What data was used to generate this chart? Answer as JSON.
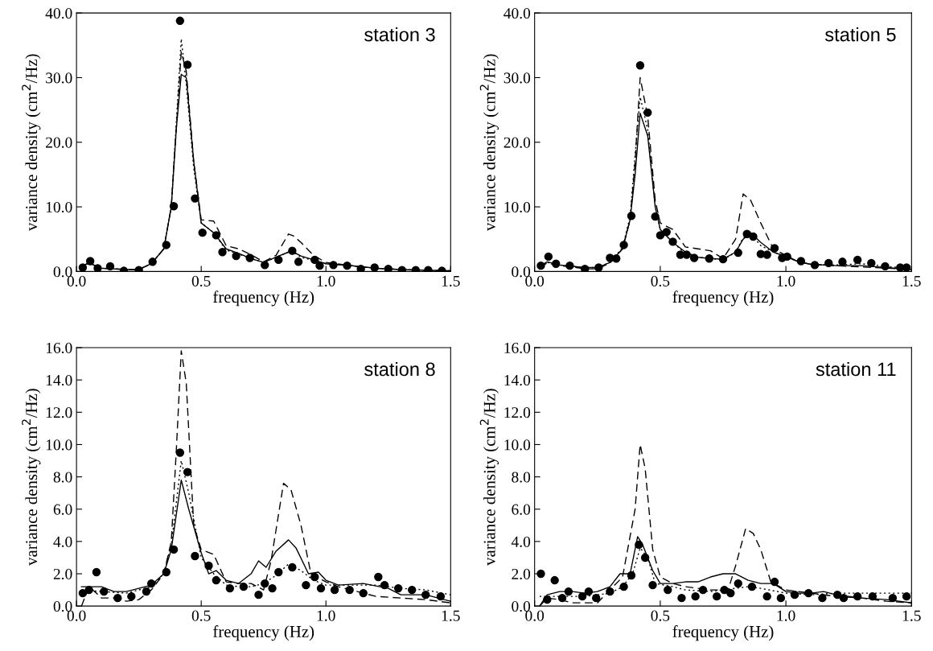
{
  "chart_data": [
    {
      "type": "line",
      "xlabel": "frequency (Hz)",
      "ylabel": "variance density (cm$^{2}$/Hz)",
      "annotations": [
        "station 3"
      ],
      "xlim": [
        0,
        1.5
      ],
      "xticks": [
        {
          "value": 0,
          "label": "0.0"
        },
        {
          "value": 0.5,
          "label": "0.5"
        },
        {
          "value": 1.0,
          "label": "1.0"
        },
        {
          "value": 1.5,
          "label": "1.5"
        }
      ],
      "ylim": [
        0,
        40
      ],
      "yticks": [
        {
          "value": 0,
          "label": "0.0"
        },
        {
          "value": 10,
          "label": "10.0"
        },
        {
          "value": 20,
          "label": "20.0"
        },
        {
          "value": 30,
          "label": "30.0"
        },
        {
          "value": 40,
          "label": "40.0"
        }
      ],
      "grid": false,
      "series": [
        {
          "type": "scatter",
          "marker": "circle",
          "color": "#000000",
          "x": [
            0.025,
            0.055,
            0.085,
            0.135,
            0.19,
            0.25,
            0.305,
            0.36,
            0.39,
            0.415,
            0.445,
            0.475,
            0.505,
            0.56,
            0.585,
            0.64,
            0.695,
            0.755,
            0.81,
            0.865,
            0.89,
            0.955,
            0.975,
            1.03,
            1.085,
            1.14,
            1.195,
            1.25,
            1.305,
            1.36,
            1.41,
            1.465
          ],
          "values": [
            0.6,
            1.6,
            0.5,
            0.8,
            0.1,
            0.2,
            1.5,
            4.1,
            10.1,
            38.8,
            32.0,
            11.3,
            6.0,
            5.6,
            3.0,
            2.4,
            2.1,
            1.0,
            1.8,
            3.2,
            1.5,
            1.8,
            0.9,
            1.0,
            0.9,
            0.4,
            0.6,
            0.4,
            0.2,
            0.2,
            0.2,
            0.1
          ]
        },
        {
          "line_style": "solid",
          "color": "#000000",
          "x": [
            0.02,
            0.05,
            0.1,
            0.2,
            0.25,
            0.3,
            0.35,
            0.38,
            0.4,
            0.42,
            0.44,
            0.47,
            0.5,
            0.55,
            0.6,
            0.65,
            0.7,
            0.75,
            0.8,
            0.85,
            0.87,
            0.9,
            0.95,
            1.0,
            1.1,
            1.2,
            1.3,
            1.4,
            1.5
          ],
          "values": [
            0.8,
            1.3,
            0.5,
            0.3,
            0.3,
            1.2,
            3.5,
            10,
            22,
            30.5,
            30,
            17,
            7.5,
            6,
            3.5,
            2.8,
            2,
            1.4,
            2.2,
            3,
            3,
            2.4,
            1.8,
            1.2,
            0.9,
            0.5,
            0.3,
            0.2,
            0.1
          ]
        },
        {
          "line_style": "dashed",
          "color": "#000000",
          "x": [
            0.02,
            0.05,
            0.1,
            0.2,
            0.25,
            0.3,
            0.35,
            0.38,
            0.4,
            0.42,
            0.44,
            0.47,
            0.5,
            0.55,
            0.6,
            0.65,
            0.7,
            0.75,
            0.8,
            0.85,
            0.87,
            0.9,
            0.95,
            1.0,
            1.1,
            1.2,
            1.3,
            1.4,
            1.5
          ],
          "values": [
            0.8,
            1.3,
            0.5,
            0.3,
            0.3,
            1.2,
            3.5,
            10,
            22,
            34,
            31,
            17,
            8,
            7.8,
            4,
            3.5,
            2.6,
            1.5,
            2.5,
            5.8,
            5.5,
            4.5,
            2.5,
            1.4,
            0.9,
            0.5,
            0.3,
            0.2,
            0.1
          ]
        },
        {
          "line_style": "dotted",
          "color": "#000000",
          "x": [
            0.02,
            0.05,
            0.1,
            0.2,
            0.25,
            0.3,
            0.35,
            0.38,
            0.4,
            0.42,
            0.44,
            0.47,
            0.5,
            0.55,
            0.6,
            0.65,
            0.7,
            0.75,
            0.8,
            0.85,
            0.87,
            0.9,
            0.95,
            1.0,
            1.1,
            1.2,
            1.3,
            1.4,
            1.5
          ],
          "values": [
            0.8,
            1.3,
            0.5,
            0.3,
            0.3,
            1.2,
            3.5,
            10,
            23,
            36,
            29,
            16,
            7.5,
            6,
            3.3,
            2.7,
            2,
            1.4,
            2.2,
            3,
            3,
            2.2,
            1.7,
            1.2,
            0.9,
            0.5,
            0.3,
            0.2,
            0.1
          ]
        }
      ]
    },
    {
      "type": "line",
      "xlabel": "frequency (Hz)",
      "ylabel": "variance density (cm$^{2}$/Hz)",
      "annotations": [
        "station 5"
      ],
      "xlim": [
        0,
        1.5
      ],
      "xticks": [
        {
          "value": 0,
          "label": "0.0"
        },
        {
          "value": 0.5,
          "label": "0.5"
        },
        {
          "value": 1.0,
          "label": "1.0"
        },
        {
          "value": 1.5,
          "label": "1.5"
        }
      ],
      "ylim": [
        0,
        40
      ],
      "yticks": [
        {
          "value": 0,
          "label": "0.0"
        },
        {
          "value": 10,
          "label": "10.0"
        },
        {
          "value": 20,
          "label": "20.0"
        },
        {
          "value": 30,
          "label": "30.0"
        },
        {
          "value": 40,
          "label": "40.0"
        }
      ],
      "grid": false,
      "series": [
        {
          "type": "scatter",
          "marker": "circle",
          "color": "#000000",
          "x": [
            0.025,
            0.055,
            0.085,
            0.14,
            0.2,
            0.255,
            0.3,
            0.325,
            0.355,
            0.385,
            0.42,
            0.45,
            0.48,
            0.5,
            0.525,
            0.55,
            0.58,
            0.605,
            0.635,
            0.695,
            0.75,
            0.81,
            0.845,
            0.87,
            0.9,
            0.925,
            0.955,
            0.985,
            1.005,
            1.06,
            1.115,
            1.17,
            1.225,
            1.285,
            1.34,
            1.395,
            1.455,
            1.48
          ],
          "values": [
            0.9,
            2.3,
            1.2,
            0.9,
            0.4,
            0.6,
            2.1,
            2.0,
            4.1,
            8.6,
            31.9,
            24.6,
            8.5,
            5.6,
            6.1,
            4.6,
            2.6,
            2.6,
            2.1,
            2.0,
            1.9,
            2.9,
            5.8,
            5.4,
            2.7,
            2.6,
            3.6,
            2.1,
            2.3,
            1.6,
            1.0,
            1.3,
            1.5,
            1.8,
            1.3,
            0.8,
            0.6,
            0.6
          ]
        },
        {
          "line_style": "solid",
          "color": "#000000",
          "x": [
            0.02,
            0.05,
            0.1,
            0.15,
            0.2,
            0.25,
            0.3,
            0.35,
            0.38,
            0.4,
            0.42,
            0.45,
            0.48,
            0.5,
            0.55,
            0.6,
            0.65,
            0.7,
            0.75,
            0.8,
            0.83,
            0.86,
            0.9,
            0.95,
            1.0,
            1.05,
            1.1,
            1.2,
            1.3,
            1.4,
            1.5
          ],
          "values": [
            0.8,
            1.5,
            1.0,
            0.8,
            0.6,
            0.6,
            1.4,
            3.5,
            8,
            15,
            24.5,
            21,
            10,
            6.5,
            4.5,
            3,
            2.2,
            2,
            1.9,
            3,
            5,
            6,
            4.5,
            3,
            2.3,
            1.5,
            1.1,
            0.9,
            0.9,
            0.6,
            0.3
          ]
        },
        {
          "line_style": "dashed",
          "color": "#000000",
          "x": [
            0.02,
            0.05,
            0.1,
            0.15,
            0.2,
            0.25,
            0.3,
            0.35,
            0.38,
            0.4,
            0.42,
            0.45,
            0.48,
            0.5,
            0.55,
            0.6,
            0.65,
            0.7,
            0.75,
            0.8,
            0.83,
            0.86,
            0.9,
            0.95,
            1.0,
            1.05,
            1.1,
            1.2,
            1.3,
            1.4,
            1.5
          ],
          "values": [
            0.7,
            1.3,
            0.9,
            0.7,
            0.4,
            0.4,
            1.3,
            3.5,
            8,
            17,
            30,
            24,
            11,
            7.5,
            6.5,
            3.8,
            3.5,
            3.2,
            2.0,
            5,
            12,
            11,
            7.5,
            3.5,
            2.5,
            1.5,
            1.1,
            0.9,
            0.7,
            0.5,
            0.3
          ]
        },
        {
          "line_style": "dotted",
          "color": "#000000",
          "x": [
            0.02,
            0.05,
            0.1,
            0.15,
            0.2,
            0.25,
            0.3,
            0.35,
            0.38,
            0.4,
            0.42,
            0.45,
            0.48,
            0.5,
            0.55,
            0.6,
            0.65,
            0.7,
            0.75,
            0.8,
            0.83,
            0.86,
            0.9,
            0.95,
            1.0,
            1.05,
            1.1,
            1.2,
            1.3,
            1.4,
            1.5
          ],
          "values": [
            0.8,
            1.4,
            1.0,
            0.8,
            0.6,
            0.6,
            1.4,
            3.7,
            8.5,
            18,
            27,
            22,
            10,
            6.5,
            4.5,
            2.8,
            2.2,
            2,
            1.8,
            3,
            5.2,
            5.8,
            4,
            3,
            2.3,
            1.5,
            1.1,
            1,
            1.2,
            0.8,
            0.4
          ]
        }
      ]
    },
    {
      "type": "line",
      "xlabel": "frequency (Hz)",
      "ylabel": "variance density (cm$^{2}$/Hz)",
      "annotations": [
        "station 8"
      ],
      "xlim": [
        0,
        1.5
      ],
      "xticks": [
        {
          "value": 0,
          "label": "0.0"
        },
        {
          "value": 0.5,
          "label": "0.5"
        },
        {
          "value": 1.0,
          "label": "1.0"
        },
        {
          "value": 1.5,
          "label": "1.5"
        }
      ],
      "ylim": [
        0,
        16
      ],
      "yticks": [
        {
          "value": 0,
          "label": "0.0"
        },
        {
          "value": 2,
          "label": "2.0"
        },
        {
          "value": 4,
          "label": "4.0"
        },
        {
          "value": 6,
          "label": "6.0"
        },
        {
          "value": 8,
          "label": "8.0"
        },
        {
          "value": 10,
          "label": "10.0"
        },
        {
          "value": 12,
          "label": "12.0"
        },
        {
          "value": 14,
          "label": "14.0"
        },
        {
          "value": 16,
          "label": "16.0"
        }
      ],
      "grid": false,
      "series": [
        {
          "type": "scatter",
          "marker": "circle",
          "color": "#000000",
          "x": [
            0.025,
            0.05,
            0.08,
            0.11,
            0.165,
            0.22,
            0.28,
            0.3,
            0.36,
            0.39,
            0.415,
            0.445,
            0.475,
            0.53,
            0.56,
            0.615,
            0.67,
            0.73,
            0.755,
            0.785,
            0.81,
            0.865,
            0.92,
            0.955,
            0.98,
            1.035,
            1.095,
            1.15,
            1.21,
            1.235,
            1.29,
            1.345,
            1.4,
            1.46
          ],
          "values": [
            0.8,
            1.0,
            2.1,
            0.9,
            0.5,
            0.6,
            0.9,
            1.4,
            2.1,
            3.5,
            9.5,
            8.3,
            3.1,
            2.5,
            1.6,
            1.1,
            1.2,
            0.7,
            1.4,
            1.1,
            2.1,
            2.4,
            1.3,
            1.8,
            1.1,
            1.0,
            1.0,
            0.8,
            1.8,
            1.3,
            1.1,
            1.0,
            0.7,
            0.6
          ]
        },
        {
          "line_style": "solid",
          "color": "#000000",
          "x": [
            0.02,
            0.1,
            0.15,
            0.2,
            0.25,
            0.3,
            0.35,
            0.38,
            0.42,
            0.45,
            0.5,
            0.53,
            0.56,
            0.6,
            0.65,
            0.7,
            0.73,
            0.76,
            0.8,
            0.85,
            0.88,
            0.93,
            0.97,
            1.0,
            1.05,
            1.15,
            1.25,
            1.3,
            1.4,
            1.5
          ],
          "values": [
            1.2,
            1.2,
            0.9,
            0.9,
            1.1,
            1.3,
            2,
            3.5,
            7.8,
            6,
            3.3,
            2,
            2.2,
            1.6,
            1.4,
            2,
            2.8,
            2.4,
            3.4,
            4.1,
            3.6,
            2,
            2.1,
            1.6,
            1.3,
            1.4,
            1.1,
            0.7,
            0.7,
            0.3
          ]
        },
        {
          "line_style": "dashed",
          "color": "#000000",
          "x": [
            0.02,
            0.05,
            0.08,
            0.1,
            0.15,
            0.2,
            0.25,
            0.3,
            0.35,
            0.38,
            0.4,
            0.42,
            0.44,
            0.47,
            0.5,
            0.55,
            0.6,
            0.65,
            0.7,
            0.75,
            0.78,
            0.83,
            0.86,
            0.9,
            0.94,
            1.0,
            1.05,
            1.1,
            1.2,
            1.3,
            1.4,
            1.5
          ],
          "values": [
            0,
            1.2,
            0.8,
            0.5,
            0.5,
            0.3,
            0.4,
            1,
            2,
            4,
            9.6,
            15.8,
            13.8,
            5,
            3.5,
            3.2,
            1.5,
            1.4,
            1.4,
            1,
            2.8,
            7.6,
            7.2,
            5,
            2,
            1.5,
            1.2,
            1.0,
            0.6,
            0.5,
            0.4,
            0.2
          ]
        },
        {
          "line_style": "dotted",
          "color": "#000000",
          "x": [
            0.02,
            0.1,
            0.2,
            0.3,
            0.35,
            0.38,
            0.42,
            0.45,
            0.5,
            0.55,
            0.6,
            0.65,
            0.7,
            0.75,
            0.8,
            0.85,
            0.9,
            0.95,
            1.0,
            1.1,
            1.2,
            1.3,
            1.4,
            1.5
          ],
          "values": [
            1.0,
            0.9,
            0.8,
            1.2,
            2,
            3.8,
            9,
            7,
            3,
            2,
            1.3,
            1.2,
            1.2,
            1.4,
            1.9,
            2.6,
            2.2,
            1.6,
            1.3,
            1.3,
            1.3,
            1.1,
            1.0,
            0.7
          ]
        }
      ]
    },
    {
      "type": "line",
      "xlabel": "frequency (Hz)",
      "ylabel": "variance density (cm$^{2}$/Hz)",
      "annotations": [
        "station 11"
      ],
      "xlim": [
        0,
        1.5
      ],
      "xticks": [
        {
          "value": 0,
          "label": "0.0"
        },
        {
          "value": 0.5,
          "label": "0.5"
        },
        {
          "value": 1.0,
          "label": "1.0"
        },
        {
          "value": 1.5,
          "label": "1.5"
        }
      ],
      "ylim": [
        0,
        16
      ],
      "yticks": [
        {
          "value": 0,
          "label": "0.0"
        },
        {
          "value": 2,
          "label": "2.0"
        },
        {
          "value": 4,
          "label": "4.0"
        },
        {
          "value": 6,
          "label": "6.0"
        },
        {
          "value": 8,
          "label": "8.0"
        },
        {
          "value": 10,
          "label": "10.0"
        },
        {
          "value": 12,
          "label": "12.0"
        },
        {
          "value": 14,
          "label": "14.0"
        },
        {
          "value": 16,
          "label": "16.0"
        }
      ],
      "grid": false,
      "series": [
        {
          "type": "scatter",
          "marker": "circle",
          "color": "#000000",
          "x": [
            0.025,
            0.05,
            0.08,
            0.11,
            0.135,
            0.19,
            0.215,
            0.245,
            0.3,
            0.355,
            0.385,
            0.415,
            0.44,
            0.47,
            0.53,
            0.585,
            0.64,
            0.67,
            0.725,
            0.755,
            0.78,
            0.81,
            0.865,
            0.925,
            0.955,
            0.98,
            1.035,
            1.09,
            1.145,
            1.205,
            1.23,
            1.285,
            1.345,
            1.425,
            1.48
          ],
          "values": [
            2.0,
            0.4,
            1.6,
            0.5,
            0.9,
            0.6,
            0.9,
            0.5,
            0.9,
            1.2,
            1.9,
            3.8,
            3.0,
            1.3,
            1.0,
            0.5,
            0.6,
            1.0,
            0.6,
            1.0,
            0.8,
            1.4,
            1.2,
            0.6,
            1.5,
            0.5,
            0.7,
            0.8,
            0.5,
            0.7,
            0.5,
            0.6,
            0.6,
            0.5,
            0.6
          ]
        },
        {
          "line_style": "solid",
          "color": "#000000",
          "x": [
            0.02,
            0.05,
            0.1,
            0.15,
            0.2,
            0.25,
            0.3,
            0.34,
            0.38,
            0.41,
            0.43,
            0.47,
            0.5,
            0.55,
            0.6,
            0.65,
            0.7,
            0.75,
            0.8,
            0.85,
            0.9,
            0.95,
            1.0,
            1.05,
            1.1,
            1.15,
            1.2,
            1.25,
            1.3,
            1.4,
            1.5
          ],
          "values": [
            0,
            0.7,
            0.9,
            0.9,
            0.8,
            0.9,
            1.2,
            2,
            2,
            4.3,
            3.8,
            2.2,
            1.4,
            1.4,
            1.5,
            1.5,
            1.8,
            2,
            2,
            1.6,
            1.4,
            1.4,
            0.9,
            0.8,
            0.8,
            0.9,
            0.7,
            0.6,
            0.5,
            0.4,
            0.2
          ]
        },
        {
          "line_style": "dashed",
          "color": "#000000",
          "x": [
            0.02,
            0.05,
            0.1,
            0.15,
            0.2,
            0.25,
            0.3,
            0.35,
            0.4,
            0.42,
            0.44,
            0.47,
            0.5,
            0.55,
            0.6,
            0.7,
            0.77,
            0.8,
            0.84,
            0.87,
            0.9,
            0.94,
            1.0,
            1.1,
            1.2,
            1.3,
            1.4,
            1.5
          ],
          "values": [
            0,
            0.5,
            0.4,
            0.2,
            0.2,
            0.2,
            1,
            1.8,
            6,
            10,
            8.5,
            3.5,
            1.8,
            1.4,
            1.2,
            1.0,
            1.0,
            2.5,
            4.8,
            4.5,
            3.5,
            1.5,
            1.0,
            0.8,
            0.6,
            0.5,
            0.3,
            0.2
          ]
        },
        {
          "line_style": "dotted",
          "color": "#000000",
          "x": [
            0.02,
            0.1,
            0.2,
            0.3,
            0.35,
            0.39,
            0.42,
            0.45,
            0.48,
            0.55,
            0.6,
            0.7,
            0.8,
            0.85,
            0.9,
            1.0,
            1.1,
            1.2,
            1.3,
            1.4,
            1.5
          ],
          "values": [
            0.6,
            0.6,
            0.6,
            0.8,
            1.2,
            2,
            3.6,
            3,
            1.4,
            1.2,
            1.0,
            0.9,
            1.1,
            1.2,
            1.1,
            0.8,
            0.7,
            0.8,
            0.8,
            0.8,
            0.8
          ]
        }
      ]
    }
  ]
}
